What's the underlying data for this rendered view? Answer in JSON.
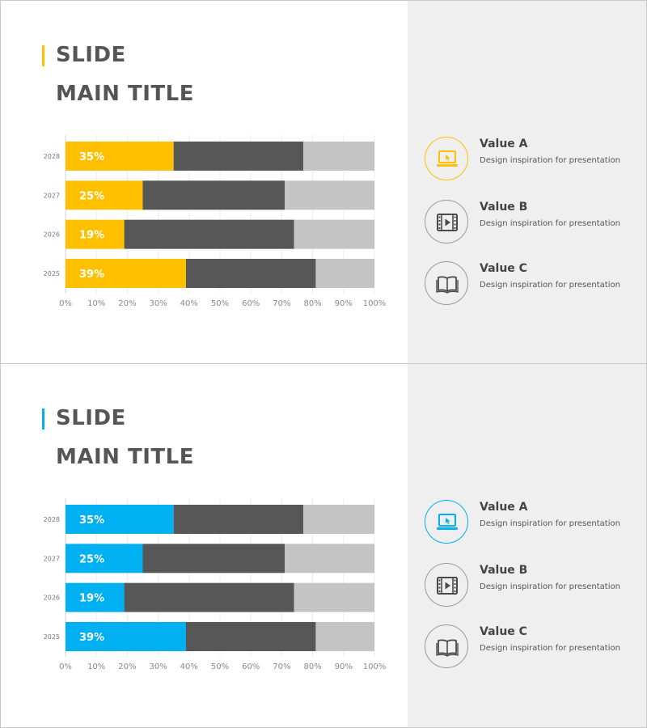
{
  "slides": [
    {
      "title_line1": "SLIDE",
      "title_line2": "MAIN TITLE",
      "accent_color": "#ffc000",
      "legend": [
        {
          "title": "Value A",
          "description": "Design inspiration for presentation",
          "icon": "laptop-icon"
        },
        {
          "title": "Value B",
          "description": "Design inspiration for presentation",
          "icon": "film-icon"
        },
        {
          "title": "Value C",
          "description": "Design inspiration for presentation",
          "icon": "book-icon"
        }
      ]
    },
    {
      "title_line1": "SLIDE",
      "title_line2": "MAIN TITLE",
      "accent_color": "#00b0f0",
      "legend": [
        {
          "title": "Value A",
          "description": "Design inspiration for presentation",
          "icon": "laptop-icon"
        },
        {
          "title": "Value B",
          "description": "Design inspiration for presentation",
          "icon": "film-icon"
        },
        {
          "title": "Value C",
          "description": "Design inspiration for presentation",
          "icon": "book-icon"
        }
      ]
    }
  ],
  "chart_data": [
    {
      "type": "bar",
      "orientation": "horizontal",
      "stacked": true,
      "categories": [
        "2028",
        "2027",
        "2026",
        "2025"
      ],
      "series": [
        {
          "name": "Value A",
          "values": [
            35,
            25,
            19,
            39
          ],
          "color": "#ffc000",
          "labels": [
            "35%",
            "25%",
            "19%",
            "39%"
          ]
        },
        {
          "name": "Value B",
          "values": [
            42,
            46,
            55,
            42
          ],
          "color": "#575757"
        },
        {
          "name": "Value C",
          "values": [
            23,
            29,
            26,
            19
          ],
          "color": "#c4c4c4"
        }
      ],
      "x_ticks": [
        "0%",
        "10%",
        "20%",
        "30%",
        "40%",
        "50%",
        "60%",
        "70%",
        "80%",
        "90%",
        "100%"
      ],
      "xlim": [
        0,
        100
      ],
      "grid": "vertical"
    },
    {
      "type": "bar",
      "orientation": "horizontal",
      "stacked": true,
      "categories": [
        "2028",
        "2027",
        "2026",
        "2025"
      ],
      "series": [
        {
          "name": "Value A",
          "values": [
            35,
            25,
            19,
            39
          ],
          "color": "#00b0f0",
          "labels": [
            "35%",
            "25%",
            "19%",
            "39%"
          ]
        },
        {
          "name": "Value B",
          "values": [
            42,
            46,
            55,
            42
          ],
          "color": "#575757"
        },
        {
          "name": "Value C",
          "values": [
            23,
            29,
            26,
            19
          ],
          "color": "#c4c4c4"
        }
      ],
      "x_ticks": [
        "0%",
        "10%",
        "20%",
        "30%",
        "40%",
        "50%",
        "60%",
        "70%",
        "80%",
        "90%",
        "100%"
      ],
      "xlim": [
        0,
        100
      ],
      "grid": "vertical"
    }
  ]
}
